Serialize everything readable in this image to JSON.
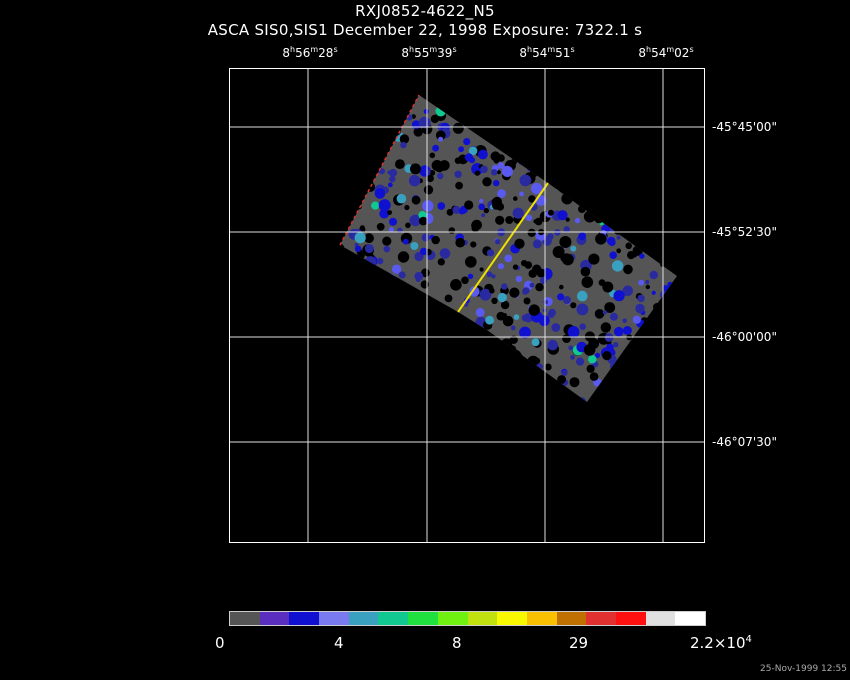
{
  "header": {
    "title": "RXJ0852-4622_N5",
    "subtitle": "ASCA SIS0,SIS1 December 22, 1998 Exposure: 7322.1 s"
  },
  "axes": {
    "ra_labels": [
      {
        "h": "8",
        "m": "56",
        "s": "28"
      },
      {
        "h": "8",
        "m": "55",
        "s": "39"
      },
      {
        "h": "8",
        "m": "54",
        "s": "51"
      },
      {
        "h": "8",
        "m": "54",
        "s": "02"
      }
    ],
    "dec_labels": [
      "-45°45'00\"",
      "-45°52'30\"",
      "-46°00'00\"",
      "-46°07'30\""
    ]
  },
  "colorbar": {
    "colors": [
      "#555555",
      "#5a2fbf",
      "#1010d0",
      "#7a7af0",
      "#3aa0c0",
      "#10c890",
      "#20e040",
      "#70f010",
      "#c0e010",
      "#f8f800",
      "#f8c000",
      "#c07000",
      "#e03030",
      "#ff1010",
      "#e0e0e0",
      "#ffffff"
    ],
    "ticks": [
      {
        "value": "0"
      },
      {
        "value": "4"
      },
      {
        "value": "8"
      },
      {
        "value": "29"
      },
      {
        "value": "2.2×10",
        "exp": "4"
      }
    ]
  },
  "footer": {
    "timestamp": "25-Nov-1999 12:55"
  }
}
